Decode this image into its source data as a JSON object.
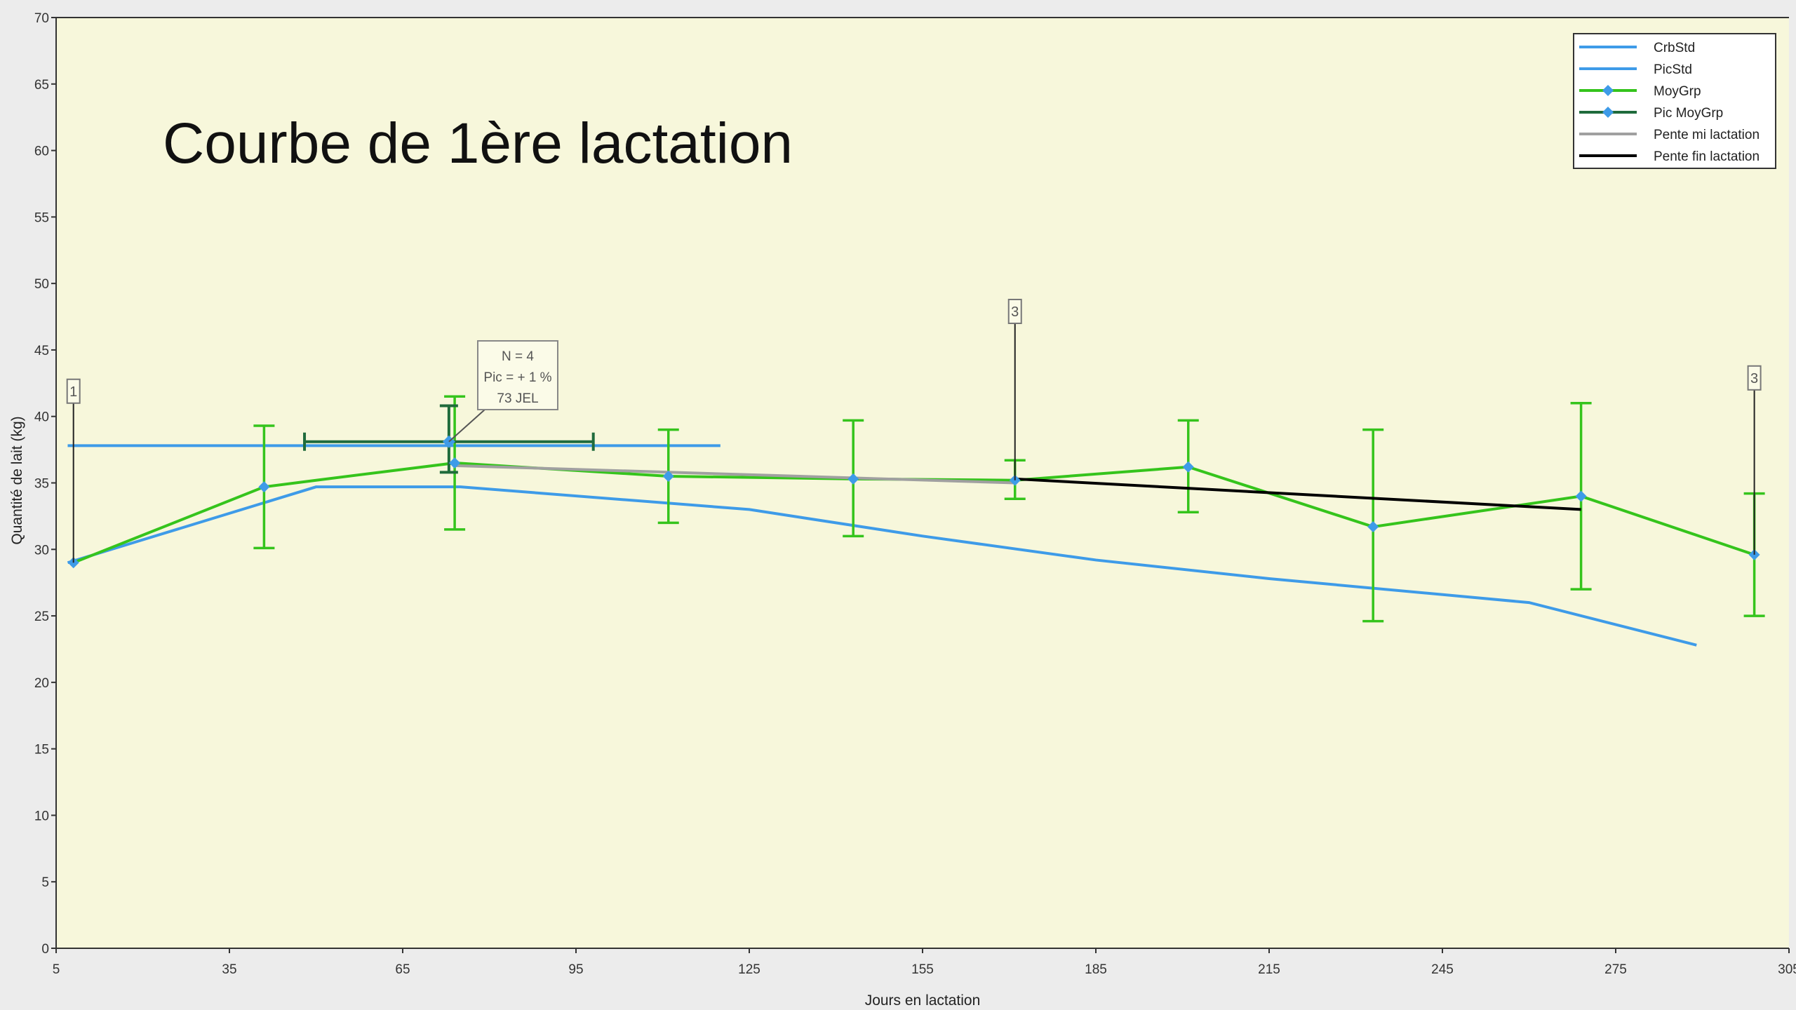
{
  "chart_data": {
    "type": "line",
    "title": "Courbe de 1ère lactation",
    "xlabel": "Jours en lactation",
    "ylabel": "Quantité de lait (kg)",
    "xlim": [
      5,
      305
    ],
    "ylim": [
      0,
      70
    ],
    "xticks": [
      5,
      35,
      65,
      95,
      125,
      155,
      185,
      215,
      245,
      275,
      305
    ],
    "yticks": [
      0,
      5,
      10,
      15,
      20,
      25,
      30,
      35,
      40,
      45,
      50,
      55,
      60,
      65,
      70
    ],
    "grid": false,
    "legend": "top-right",
    "colors": {
      "plot_bg": "#f7f7db",
      "CrbStd": "#3e9be8",
      "PicStd": "#3e9be8",
      "MoyGrp": "#35c41c",
      "MoyGrp_marker": "#3e9be8",
      "PicMoyGrp": "#1f6b3c",
      "PenteMi": "#a0a0a0",
      "PenteFin": "#000000"
    },
    "series": [
      {
        "name": "CrbStd",
        "points": [
          [
            7,
            29
          ],
          [
            50,
            34.7
          ],
          [
            75,
            34.7
          ],
          [
            125,
            33
          ],
          [
            155,
            31
          ],
          [
            185,
            29.2
          ],
          [
            215,
            27.8
          ],
          [
            260,
            26
          ],
          [
            289,
            22.8
          ]
        ]
      },
      {
        "name": "PicStd",
        "points": [
          [
            7,
            37.8
          ],
          [
            120,
            37.8
          ]
        ]
      },
      {
        "name": "MoyGrp",
        "points": [
          [
            8,
            29
          ],
          [
            41,
            34.7
          ],
          [
            50,
            35.2
          ],
          [
            74,
            36.5
          ],
          [
            111,
            35.5
          ],
          [
            143,
            35.3
          ],
          [
            171,
            35.2
          ],
          [
            201,
            36.2
          ],
          [
            233,
            31.7
          ],
          [
            269,
            34
          ],
          [
            299,
            29.6
          ]
        ],
        "markers": [
          [
            8,
            29
          ],
          [
            41,
            34.7
          ],
          [
            74,
            36.5
          ],
          [
            111,
            35.5
          ],
          [
            143,
            35.3
          ],
          [
            171,
            35.2
          ],
          [
            201,
            36.2
          ],
          [
            233,
            31.7
          ],
          [
            269,
            34
          ],
          [
            299,
            29.6
          ]
        ],
        "error_bars": [
          {
            "x": 41,
            "low": 30.1,
            "high": 39.3
          },
          {
            "x": 74,
            "low": 31.5,
            "high": 41.5
          },
          {
            "x": 111,
            "low": 32,
            "high": 39
          },
          {
            "x": 143,
            "low": 31,
            "high": 39.7
          },
          {
            "x": 171,
            "low": 33.8,
            "high": 36.7
          },
          {
            "x": 201,
            "low": 32.8,
            "high": 39.7
          },
          {
            "x": 233,
            "low": 24.6,
            "high": 39
          },
          {
            "x": 269,
            "low": 27,
            "high": 41
          },
          {
            "x": 299,
            "low": 25,
            "high": 34.2
          }
        ]
      },
      {
        "name": "Pic MoyGrp",
        "points": [
          [
            73,
            38.1
          ]
        ],
        "x_error": [
          48,
          98
        ],
        "y_error": [
          35.8,
          40.8
        ]
      },
      {
        "name": "Pente mi lactation",
        "points": [
          [
            74,
            36.3
          ],
          [
            171,
            35
          ]
        ]
      },
      {
        "name": "Pente fin lactation",
        "points": [
          [
            171,
            35.3
          ],
          [
            269,
            33
          ]
        ]
      }
    ],
    "annotations": [
      {
        "text": "1",
        "x": 8,
        "y": 29,
        "top": 41
      },
      {
        "text": "3",
        "x": 171,
        "y": 35.2,
        "top": 47
      },
      {
        "text": "3",
        "x": 299,
        "y": 29.6,
        "top": 42
      },
      {
        "lines": [
          "N = 4",
          "Pic = + 1 %",
          "73 JEL"
        ],
        "x": 73,
        "y": 38.1
      }
    ]
  }
}
